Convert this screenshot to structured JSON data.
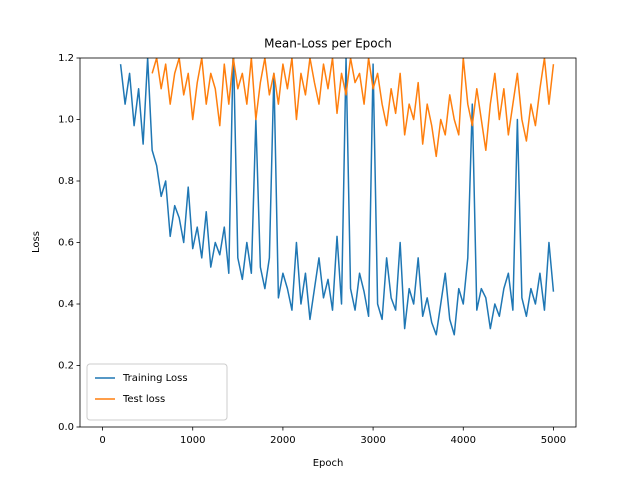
{
  "chart_data": {
    "type": "line",
    "title": "Mean-Loss per Epoch",
    "xlabel": "Epoch",
    "ylabel": "Loss",
    "x": [
      200,
      250,
      300,
      350,
      400,
      450,
      500,
      550,
      600,
      650,
      700,
      750,
      800,
      850,
      900,
      950,
      1000,
      1050,
      1100,
      1150,
      1200,
      1250,
      1300,
      1350,
      1400,
      1450,
      1500,
      1550,
      1600,
      1650,
      1700,
      1750,
      1800,
      1850,
      1900,
      1950,
      2000,
      2050,
      2100,
      2150,
      2200,
      2250,
      2300,
      2350,
      2400,
      2450,
      2500,
      2550,
      2600,
      2650,
      2700,
      2750,
      2800,
      2850,
      2900,
      2950,
      3000,
      3050,
      3100,
      3150,
      3200,
      3250,
      3300,
      3350,
      3400,
      3450,
      3500,
      3550,
      3600,
      3650,
      3700,
      3750,
      3800,
      3850,
      3900,
      3950,
      4000,
      4050,
      4100,
      4150,
      4200,
      4250,
      4300,
      4350,
      4400,
      4450,
      4500,
      4550,
      4600,
      4650,
      4700,
      4750,
      4800,
      4850,
      4900,
      4950,
      5000
    ],
    "series": [
      {
        "name": "Training Loss",
        "color": "#1f77b4",
        "values": [
          1.18,
          1.05,
          1.15,
          0.98,
          1.1,
          0.92,
          1.2,
          0.9,
          0.85,
          0.75,
          0.8,
          0.62,
          0.72,
          0.68,
          0.6,
          0.78,
          0.58,
          0.65,
          0.55,
          0.7,
          0.52,
          0.6,
          0.56,
          0.65,
          0.5,
          1.25,
          0.55,
          0.48,
          0.6,
          0.5,
          1.0,
          0.52,
          0.45,
          0.55,
          1.15,
          0.42,
          0.5,
          0.45,
          0.38,
          0.6,
          0.4,
          0.5,
          0.35,
          0.45,
          0.55,
          0.42,
          0.48,
          0.38,
          0.62,
          0.4,
          1.2,
          0.45,
          0.38,
          0.5,
          0.44,
          0.36,
          1.18,
          0.4,
          0.35,
          0.55,
          0.42,
          0.38,
          0.6,
          0.32,
          0.45,
          0.4,
          0.55,
          0.36,
          0.42,
          0.34,
          0.3,
          0.4,
          0.5,
          0.35,
          0.3,
          0.45,
          0.4,
          0.55,
          1.05,
          0.38,
          0.45,
          0.42,
          0.32,
          0.4,
          0.36,
          0.45,
          0.5,
          0.38,
          1.0,
          0.42,
          0.36,
          0.45,
          0.4,
          0.5,
          0.38,
          0.6,
          0.44
        ]
      },
      {
        "name": "Test loss",
        "color": "#ff7f0e",
        "values": [
          null,
          null,
          null,
          null,
          null,
          null,
          null,
          1.15,
          1.2,
          1.1,
          1.18,
          1.05,
          1.15,
          1.2,
          1.08,
          1.15,
          1.0,
          1.12,
          1.2,
          1.05,
          1.15,
          1.1,
          0.98,
          1.18,
          1.05,
          1.2,
          1.1,
          1.15,
          1.05,
          1.2,
          1.0,
          1.12,
          1.2,
          1.08,
          1.15,
          1.05,
          1.18,
          1.1,
          1.2,
          1.0,
          1.15,
          1.08,
          1.2,
          1.12,
          1.05,
          1.18,
          1.1,
          1.2,
          1.02,
          1.15,
          1.08,
          1.2,
          1.12,
          1.15,
          1.05,
          1.2,
          1.1,
          1.15,
          1.05,
          0.98,
          1.1,
          1.02,
          1.15,
          0.95,
          1.05,
          1.0,
          1.12,
          0.92,
          1.05,
          0.98,
          0.88,
          1.0,
          0.95,
          1.08,
          1.0,
          0.95,
          1.2,
          1.05,
          0.98,
          1.1,
          1.0,
          0.9,
          1.05,
          1.15,
          1.0,
          1.1,
          0.95,
          1.05,
          1.15,
          1.0,
          0.93,
          1.05,
          0.98,
          1.1,
          1.2,
          1.05,
          1.18
        ]
      }
    ],
    "xlim": [
      -250,
      5250
    ],
    "ylim": [
      0,
      1.2
    ],
    "xticks": [
      0,
      1000,
      2000,
      3000,
      4000,
      5000
    ],
    "yticks": [
      {
        "value": 0,
        "label": "0.0"
      },
      0.2,
      0.4,
      0.6,
      0.8,
      {
        "value": 1,
        "label": "1.0"
      },
      1.2
    ],
    "legend": "lower left"
  }
}
